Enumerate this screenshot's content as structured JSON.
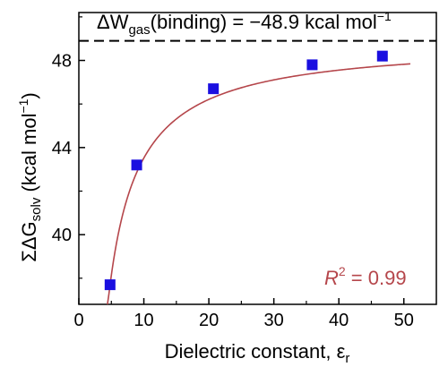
{
  "chart_data": {
    "type": "scatter",
    "xlabel": "Dielectric constant, ε",
    "xlabel_sub": "r",
    "ylabel": "ΣΔG",
    "ylabel_sub": "solv",
    "ylabel_units": " (kcal mol",
    "ylabel_units_sup": "−1",
    "ylabel_units_close": ")",
    "xlim": [
      0,
      55
    ],
    "ylim": [
      36.8,
      50.2
    ],
    "xticks": [
      0,
      10,
      20,
      30,
      40,
      50
    ],
    "yticks": [
      40,
      44,
      48
    ],
    "points": [
      {
        "x": 4.8,
        "y": 37.7
      },
      {
        "x": 8.9,
        "y": 43.2
      },
      {
        "x": 20.7,
        "y": 46.7
      },
      {
        "x": 35.9,
        "y": 47.8
      },
      {
        "x": 46.7,
        "y": 48.2
      }
    ],
    "fit": {
      "form": "y = a - b/x",
      "a": 48.9,
      "b": 53.8,
      "x_range": [
        4.4,
        51
      ],
      "color": "#b5464b"
    },
    "reference_line": {
      "y": 48.9,
      "style": "dashed",
      "label_parts": [
        "ΔW",
        "gas",
        "(binding) = −48.9 kcal mol",
        "−1"
      ]
    },
    "annotation": {
      "parts": [
        "R",
        "2",
        " = 0.99"
      ],
      "color": "#b5464b"
    },
    "marker_color": "#1a0fe0",
    "grid": false
  }
}
